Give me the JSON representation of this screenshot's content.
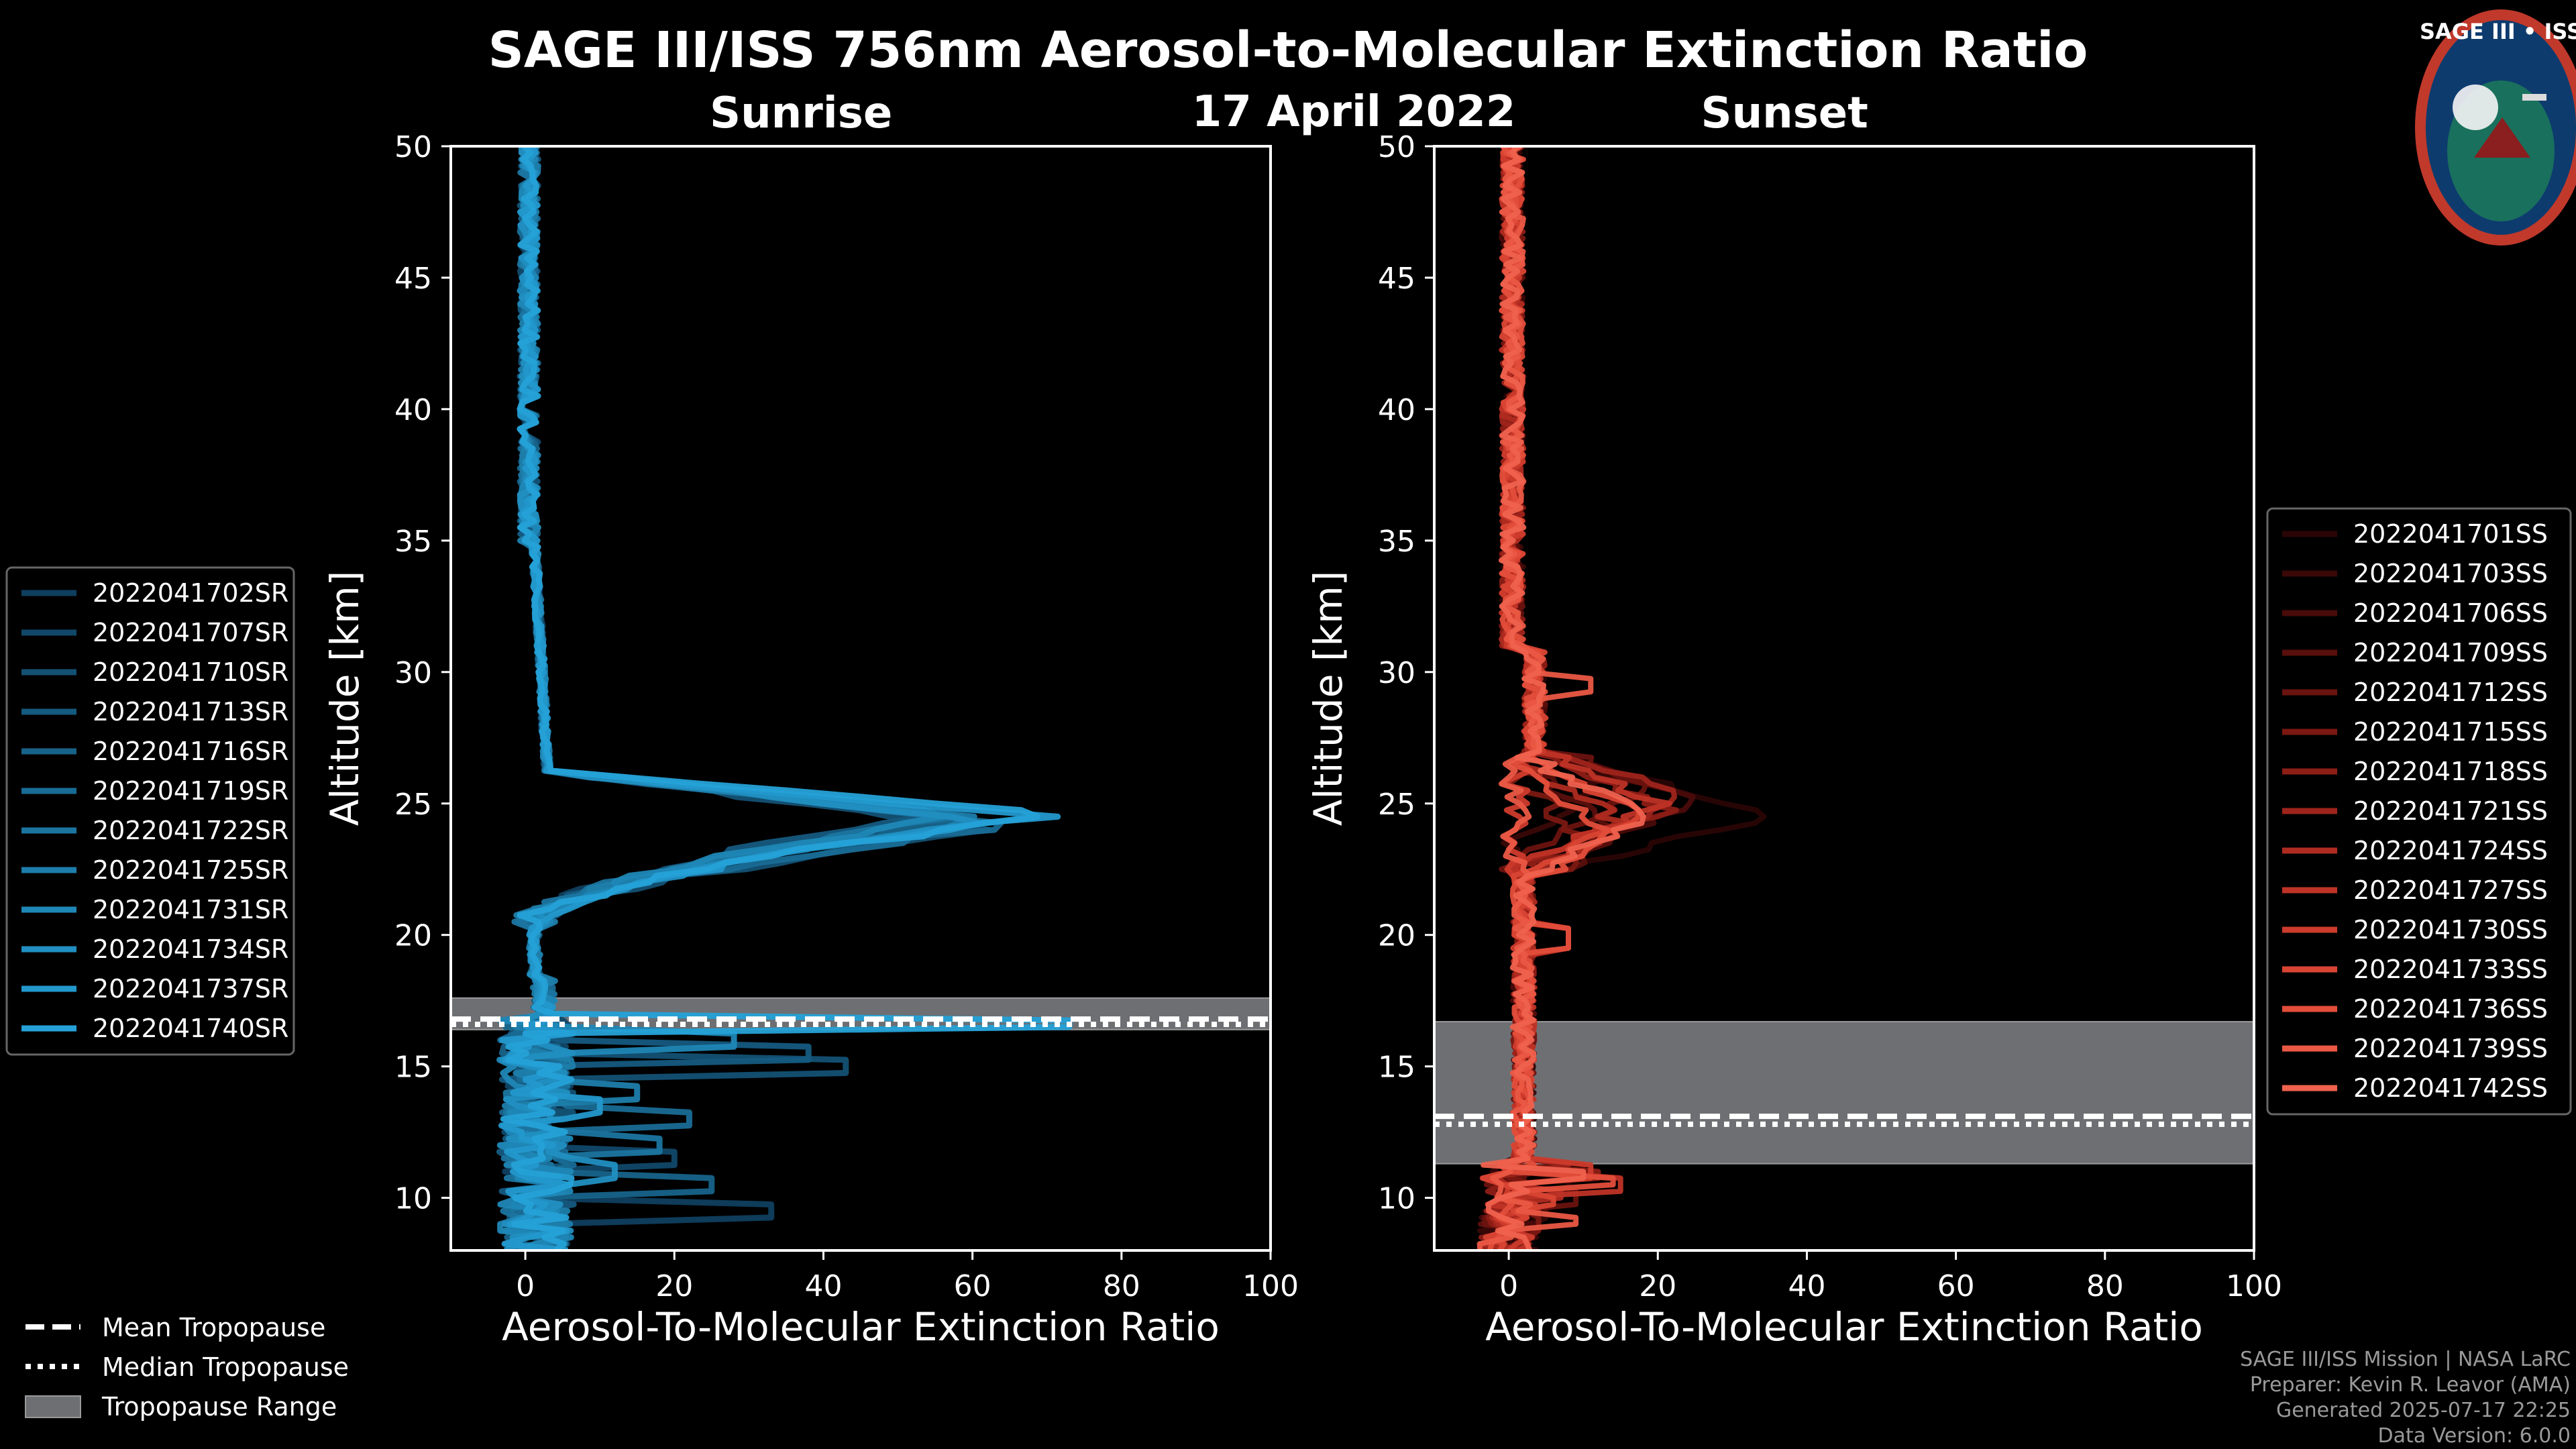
{
  "title": "SAGE III/ISS 756nm Aerosol-to-Molecular Extinction Ratio",
  "date": "17 April 2022",
  "logo": {
    "text": "SAGE III • ISS",
    "colors": [
      "#0d3b6e",
      "#c0392b",
      "#f5f5f5"
    ]
  },
  "credits": [
    "SAGE III/ISS Mission | NASA LaRC",
    "Preparer: Kevin R. Leavor (AMA)",
    "Generated 2025-07-17 22:25",
    "Data Version: 6.0.0"
  ],
  "tropopause_legend": {
    "mean": "Mean Tropopause",
    "median": "Median Tropopause",
    "range": "Tropopause Range"
  },
  "chart_data": [
    {
      "type": "line",
      "title": "Sunrise",
      "xlabel": "Aerosol-To-Molecular Extinction Ratio",
      "ylabel": "Altitude [km]",
      "xlim": [
        -10,
        100
      ],
      "ylim": [
        8,
        50
      ],
      "xticks": [
        0,
        20,
        40,
        60,
        80,
        100
      ],
      "yticks": [
        10,
        15,
        20,
        25,
        30,
        35,
        40,
        45,
        50
      ],
      "tropopause": {
        "mean": 16.8,
        "median": 16.6,
        "range": [
          16.4,
          17.6
        ]
      },
      "colors": [
        "#0f3f5f",
        "#114869",
        "#135174",
        "#155a7f",
        "#17638a",
        "#196c95",
        "#1b75a0",
        "#1d7eab",
        "#1f87b6",
        "#218fc1",
        "#2398cc",
        "#25a1d7"
      ],
      "series": [
        {
          "name": "2022041702SR",
          "peak": 58,
          "peak_alt": 24.5,
          "low": 33,
          "low_alt": 9.5
        },
        {
          "name": "2022041707SR",
          "peak": 61,
          "peak_alt": 24.3,
          "low": 20,
          "low_alt": 11.5
        },
        {
          "name": "2022041710SR",
          "peak": 64,
          "peak_alt": 24.0,
          "low": 43,
          "low_alt": 15.0
        },
        {
          "name": "2022041713SR",
          "peak": 55,
          "peak_alt": 24.6,
          "low": 38,
          "low_alt": 15.5
        },
        {
          "name": "2022041716SR",
          "peak": 60,
          "peak_alt": 24.4,
          "low": 25,
          "low_alt": 10.5
        },
        {
          "name": "2022041719SR",
          "peak": 66,
          "peak_alt": 24.2,
          "low": 22,
          "low_alt": 13.0
        },
        {
          "name": "2022041722SR",
          "peak": 57,
          "peak_alt": 24.5,
          "low": 18,
          "low_alt": 12.0
        },
        {
          "name": "2022041725SR",
          "peak": 62,
          "peak_alt": 24.4,
          "low": 15,
          "low_alt": 14.0
        },
        {
          "name": "2022041731SR",
          "peak": 59,
          "peak_alt": 24.6,
          "low": 28,
          "low_alt": 16.0
        },
        {
          "name": "2022041734SR",
          "peak": 63,
          "peak_alt": 24.3,
          "low": 12,
          "low_alt": 11.0
        },
        {
          "name": "2022041737SR",
          "peak": 68,
          "peak_alt": 24.5,
          "low": 10,
          "low_alt": 13.5
        },
        {
          "name": "2022041740SR",
          "peak": 72,
          "peak_alt": 24.6,
          "low": 73,
          "low_alt": 16.6
        }
      ]
    },
    {
      "type": "line",
      "title": "Sunset",
      "xlabel": "Aerosol-To-Molecular Extinction Ratio",
      "ylabel": "Altitude [km]",
      "xlim": [
        -10,
        100
      ],
      "ylim": [
        8,
        50
      ],
      "xticks": [
        0,
        20,
        40,
        60,
        80,
        100
      ],
      "yticks": [
        10,
        15,
        20,
        25,
        30,
        35,
        40,
        45,
        50
      ],
      "tropopause": {
        "mean": 13.1,
        "median": 12.8,
        "range": [
          11.3,
          16.7
        ]
      },
      "colors": [
        "#2a0505",
        "#390807",
        "#490b09",
        "#590f0c",
        "#6a130f",
        "#7b1812",
        "#8d1e16",
        "#9e241b",
        "#af2b20",
        "#bf3326",
        "#cd3b2c",
        "#d94433",
        "#e34e3b",
        "#ea5844",
        "#ef624e"
      ],
      "series": [
        {
          "name": "2022041701SS",
          "peak": 35,
          "peak_alt": 24.6,
          "low": 8,
          "low_alt": 10.5
        },
        {
          "name": "2022041703SS",
          "peak": 12,
          "peak_alt": 26.0,
          "low": 5,
          "low_alt": 9.5
        },
        {
          "name": "2022041706SS",
          "peak": 25,
          "peak_alt": 25.0,
          "low": 10,
          "low_alt": 11.0
        },
        {
          "name": "2022041709SS",
          "peak": 15,
          "peak_alt": 24.0,
          "low": 6,
          "low_alt": 12.0
        },
        {
          "name": "2022041712SS",
          "peak": 18,
          "peak_alt": 25.5,
          "low": 9,
          "low_alt": 10.0
        },
        {
          "name": "2022041715SS",
          "peak": 10,
          "peak_alt": 23.5,
          "low": 4,
          "low_alt": 9.0
        },
        {
          "name": "2022041718SS",
          "peak": 20,
          "peak_alt": 24.8,
          "low": 12,
          "low_alt": 10.8
        },
        {
          "name": "2022041721SS",
          "peak": 22,
          "peak_alt": 25.2,
          "low": 8,
          "low_alt": 11.5
        },
        {
          "name": "2022041724SS",
          "peak": 14,
          "peak_alt": 24.3,
          "low": 7,
          "low_alt": 10.2
        },
        {
          "name": "2022041727SS",
          "peak": 19,
          "peak_alt": 25.0,
          "low": 15,
          "low_alt": 10.5
        },
        {
          "name": "2022041730SS",
          "peak": 9,
          "peak_alt": 20.0,
          "low": 11,
          "low_alt": 11.0
        },
        {
          "name": "2022041733SS",
          "peak": 16,
          "peak_alt": 24.6,
          "low": 6,
          "low_alt": 9.8
        },
        {
          "name": "2022041736SS",
          "peak": 13,
          "peak_alt": 23.8,
          "low": 14,
          "low_alt": 10.6
        },
        {
          "name": "2022041739SS",
          "peak": 11,
          "peak_alt": 29.5,
          "low": 9,
          "low_alt": 9.2
        },
        {
          "name": "2022041742SS",
          "peak": 17,
          "peak_alt": 24.5,
          "low": 10,
          "low_alt": 10.8
        }
      ]
    }
  ]
}
